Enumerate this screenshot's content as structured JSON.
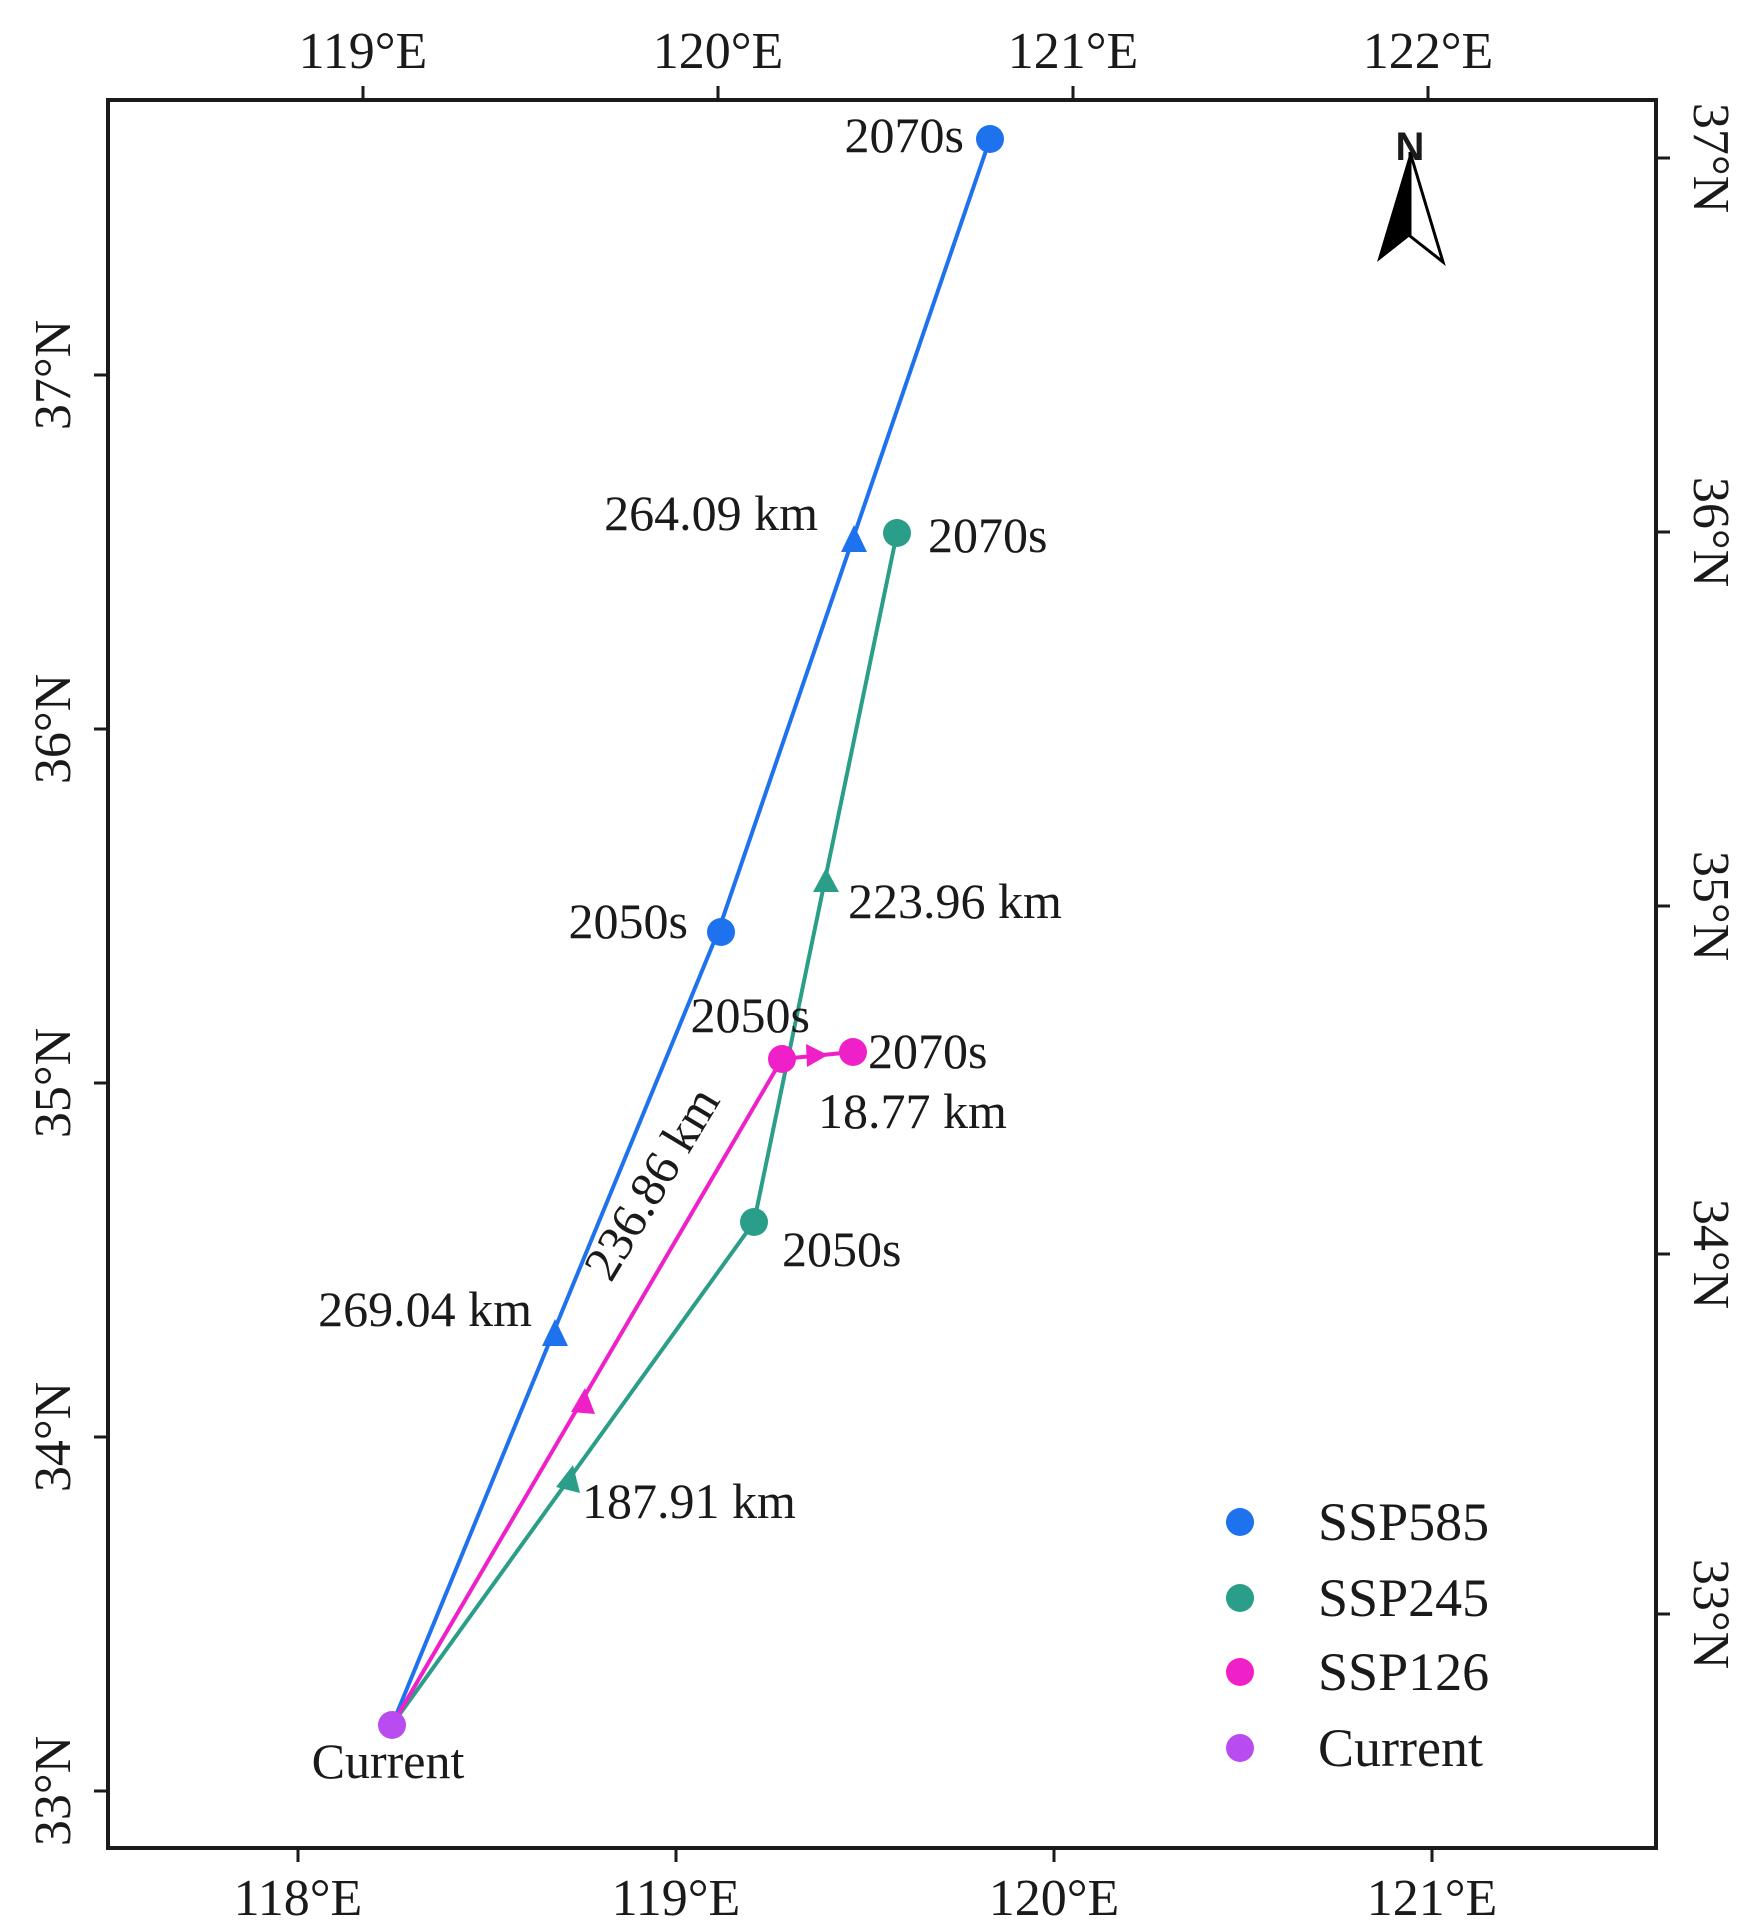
{
  "map": {
    "axes": {
      "top_ticks": [
        {
          "id": "119",
          "label": "119°E"
        },
        {
          "id": "120",
          "label": "120°E"
        },
        {
          "id": "121",
          "label": "121°E"
        },
        {
          "id": "122",
          "label": "122°E"
        }
      ],
      "bottom_ticks": [
        {
          "id": "118",
          "label": "118°E"
        },
        {
          "id": "119",
          "label": "119°E"
        },
        {
          "id": "120",
          "label": "120°E"
        },
        {
          "id": "121",
          "label": "121°E"
        }
      ],
      "left_ticks": [
        {
          "id": "33",
          "label": "33°N"
        },
        {
          "id": "34",
          "label": "34°N"
        },
        {
          "id": "35",
          "label": "35°N"
        },
        {
          "id": "36",
          "label": "36°N"
        },
        {
          "id": "37",
          "label": "37°N"
        }
      ],
      "right_ticks": [
        {
          "id": "33",
          "label": "33°N"
        },
        {
          "id": "34",
          "label": "34°N"
        },
        {
          "id": "35",
          "label": "35°N"
        },
        {
          "id": "36",
          "label": "36°N"
        },
        {
          "id": "37",
          "label": "37°N"
        }
      ]
    },
    "north_arrow_label": "N",
    "origin": {
      "lon": 118.24,
      "lat": 32.82,
      "label": "Current",
      "color": "#b84cf0"
    },
    "scenarios": [
      {
        "id": "ssp585",
        "name": "SSP585",
        "color": "#1f72ee",
        "points": [
          {
            "lon": 119.1,
            "lat": 35.43,
            "label": "2050s"
          },
          {
            "lon": 119.82,
            "lat": 37.7,
            "label": "2070s"
          }
        ],
        "segments": [
          "269.04 km",
          "264.09 km"
        ]
      },
      {
        "id": "ssp245",
        "name": "SSP245",
        "color": "#2b9e8a",
        "points": [
          {
            "lon": 119.2,
            "lat": 34.62,
            "label": "2050s"
          },
          {
            "lon": 119.57,
            "lat": 36.57,
            "label": "2070s"
          }
        ],
        "segments": [
          "187.91 km",
          "223.96 km"
        ]
      },
      {
        "id": "ssp126",
        "name": "SSP126",
        "color": "#f020c8",
        "points": [
          {
            "lon": 119.28,
            "lat": 35.07,
            "label": "2050s"
          },
          {
            "lon": 119.46,
            "lat": 35.09,
            "label": "2070s"
          }
        ],
        "segments": [
          "236.86 km",
          "18.77 km"
        ]
      }
    ],
    "legend": [
      {
        "id": "ssp585",
        "label": "SSP585",
        "color": "#1f72ee"
      },
      {
        "id": "ssp245",
        "label": "SSP245",
        "color": "#2b9e8a"
      },
      {
        "id": "ssp126",
        "label": "SSP126",
        "color": "#f020c8"
      },
      {
        "id": "current",
        "label": "Current",
        "color": "#b84cf0"
      }
    ]
  }
}
